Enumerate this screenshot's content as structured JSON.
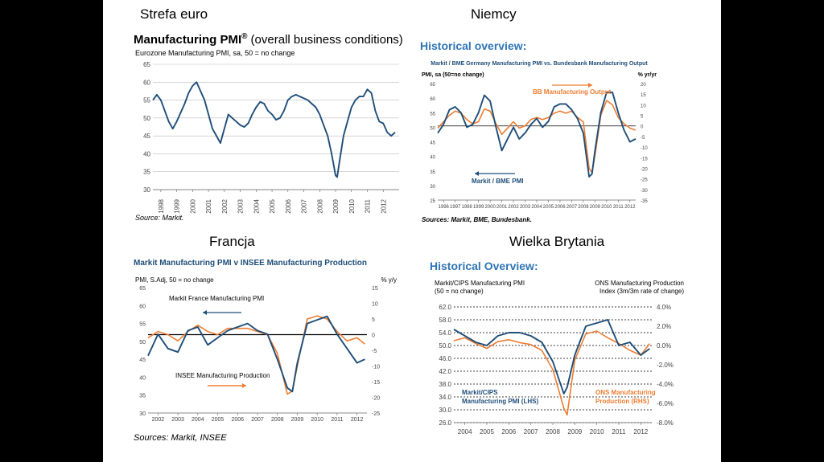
{
  "regions": {
    "eurozone": "Strefa euro",
    "germany": "Niemcy",
    "france": "Francja",
    "uk": "Wielka Brytania"
  },
  "chart_data": [
    {
      "id": "eurozone",
      "type": "line",
      "title": "Manufacturing PMI",
      "title_sup": "®",
      "title_suffix": "(overall business conditions)",
      "subtitle": "Eurozone Manufacturing PMI, sa, 50 = no change",
      "source": "Source: Markit.",
      "ylim": [
        30,
        65
      ],
      "y_ticks": [
        "30",
        "35",
        "40",
        "45",
        "50",
        "55",
        "60",
        "65"
      ],
      "x_ticks": [
        "1998",
        "1999",
        "2000",
        "2001",
        "2002",
        "2003",
        "2004",
        "2005",
        "2006",
        "2007",
        "2008",
        "2009",
        "2010",
        "2011",
        "2012"
      ],
      "x_range": [
        1997.5,
        2013.0
      ],
      "grid": true,
      "colors": {
        "line": "#1f4e79",
        "grid": "#bdbdbd"
      },
      "series": [
        {
          "x": [
            1997.5,
            1997.75,
            1998.0,
            1998.25,
            1998.5,
            1998.75,
            1999.0,
            1999.25,
            1999.5,
            1999.75,
            2000.0,
            2000.25,
            2000.5,
            2000.75,
            2001.0,
            2001.25,
            2001.5,
            2001.75,
            2002.0,
            2002.25,
            2002.5,
            2002.75,
            2003.0,
            2003.25,
            2003.5,
            2003.75,
            2004.0,
            2004.25,
            2004.5,
            2004.75,
            2005.0,
            2005.25,
            2005.5,
            2005.75,
            2006.0,
            2006.25,
            2006.5,
            2006.75,
            2007.0,
            2007.25,
            2007.5,
            2007.75,
            2008.0,
            2008.25,
            2008.5,
            2008.75,
            2009.0,
            2009.1,
            2009.25,
            2009.5,
            2009.75,
            2010.0,
            2010.25,
            2010.5,
            2010.75,
            2011.0,
            2011.25,
            2011.5,
            2011.75,
            2012.0,
            2012.25,
            2012.5,
            2012.75
          ],
          "y": [
            55,
            56.5,
            55,
            52,
            49,
            47,
            49,
            51.5,
            54,
            57,
            59,
            60,
            57.5,
            55,
            51,
            47,
            45,
            43,
            47,
            51,
            50,
            49,
            48,
            47.5,
            48.5,
            51,
            53,
            54.5,
            54,
            52,
            51,
            49.5,
            50,
            52,
            55,
            56,
            56.5,
            56,
            55.5,
            55,
            54,
            53,
            51,
            48,
            45,
            40,
            34,
            33.5,
            38,
            45,
            49,
            53,
            55,
            56,
            56,
            58,
            57,
            52,
            49,
            48.5,
            46,
            45,
            46
          ]
        }
      ]
    },
    {
      "id": "germany",
      "type": "line",
      "title": "Historical overview:",
      "subtitle": "Markit / BME Germany Manufacturing PMI vs. Bundesbank Manufacturing Output",
      "ylabel_left": "PMI, sa (50=no change)",
      "ylabel_right": "% yr/yr",
      "source": "Sources: Markit, BME, Bundesbank.",
      "ylim": [
        25,
        65
      ],
      "y2lim": [
        -35,
        20
      ],
      "y_ticks": [
        "25",
        "30",
        "35",
        "40",
        "45",
        "50",
        "55",
        "60",
        "65"
      ],
      "y2_ticks": [
        "-35",
        "-30",
        "-25",
        "-20",
        "-15",
        "-10",
        "-5",
        "0",
        "5",
        "10",
        "15",
        "20"
      ],
      "x_ticks": [
        "1996",
        "1997",
        "1998",
        "1999",
        "2000",
        "2001",
        "2002",
        "2003",
        "2004",
        "2005",
        "2006",
        "2007",
        "2008",
        "2009",
        "2010",
        "2011",
        "2012"
      ],
      "x_range": [
        1996.0,
        2013.0
      ],
      "grid": false,
      "colors": {
        "pmi": "#1f4e79",
        "output": "#ed7d31",
        "arrow_blue": "#1f4e79",
        "arrow_orange": "#ed7d31"
      },
      "series": [
        {
          "name": "BB Manufacturing Output",
          "axis": "right",
          "x": [
            1996.0,
            1996.5,
            1997.0,
            1997.5,
            1998.0,
            1998.5,
            1999.0,
            1999.5,
            2000.0,
            2000.5,
            2001.0,
            2001.5,
            2002.0,
            2002.5,
            2003.0,
            2003.5,
            2004.0,
            2004.5,
            2005.0,
            2005.5,
            2006.0,
            2006.5,
            2007.0,
            2007.5,
            2008.0,
            2008.5,
            2009.0,
            2009.25,
            2009.5,
            2010.0,
            2010.5,
            2011.0,
            2011.5,
            2012.0,
            2012.5,
            2013.0
          ],
          "y": [
            -1,
            2,
            5,
            7,
            6,
            3,
            1,
            2,
            8,
            7,
            1,
            -4,
            -1,
            2,
            -1,
            0,
            3,
            4,
            3,
            4,
            6,
            7,
            6,
            7,
            4,
            2,
            -20,
            -22,
            -14,
            5,
            12,
            10,
            4,
            1,
            -1,
            -2
          ]
        },
        {
          "name": "Markit / BME PMI",
          "axis": "left",
          "x": [
            1996.0,
            1996.5,
            1997.0,
            1997.5,
            1998.0,
            1998.5,
            1999.0,
            1999.5,
            2000.0,
            2000.5,
            2001.0,
            2001.5,
            2002.0,
            2002.5,
            2003.0,
            2003.5,
            2004.0,
            2004.5,
            2005.0,
            2005.5,
            2006.0,
            2006.5,
            2007.0,
            2007.5,
            2008.0,
            2008.5,
            2009.0,
            2009.25,
            2009.5,
            2010.0,
            2010.5,
            2011.0,
            2011.5,
            2012.0,
            2012.5,
            2013.0
          ],
          "y": [
            48,
            51,
            56,
            57,
            55,
            50,
            51,
            55,
            61,
            59,
            50,
            42,
            46,
            50,
            46,
            48,
            51,
            53,
            50,
            52,
            57,
            58,
            58,
            56,
            53,
            48,
            33,
            34,
            42,
            55,
            62,
            62,
            55,
            49,
            45,
            46
          ]
        }
      ]
    },
    {
      "id": "france",
      "type": "line",
      "title": "Markit Manufacturing PMI v INSEE Manufacturing Production",
      "ylabel_left": "PMI, S.Adj, 50 = no change",
      "ylabel_right": "% y/y",
      "annotation_pmi": "Markit France Manufacturing PMI",
      "annotation_output": "INSEE Manufacturing Production",
      "source": "Sources: Markit, INSEE",
      "ylim": [
        30,
        65
      ],
      "y2lim": [
        -25,
        15
      ],
      "y_ticks": [
        "30",
        "35",
        "40",
        "45",
        "50",
        "55",
        "60",
        "65"
      ],
      "y2_ticks": [
        "-25",
        "-20",
        "-15",
        "-10",
        "-5",
        "0",
        "5",
        "10",
        "15"
      ],
      "x_ticks": [
        "2002",
        "2003",
        "2004",
        "2005",
        "2006",
        "2007",
        "2008",
        "2009",
        "2010",
        "2011",
        "2012"
      ],
      "x_range": [
        2002.0,
        2013.0
      ],
      "grid": false,
      "colors": {
        "pmi": "#1f4e79",
        "output": "#ed7d31",
        "zero_line": "#000000"
      },
      "series": [
        {
          "name": "INSEE Manufacturing Production",
          "axis": "right",
          "x": [
            2002.0,
            2002.5,
            2003.0,
            2003.5,
            2004.0,
            2004.5,
            2005.0,
            2005.5,
            2006.0,
            2006.5,
            2007.0,
            2007.5,
            2008.0,
            2008.5,
            2009.0,
            2009.25,
            2009.5,
            2010.0,
            2010.5,
            2011.0,
            2011.5,
            2012.0,
            2012.5,
            2012.9
          ],
          "y": [
            -1,
            1,
            0,
            -2,
            1,
            3,
            1,
            0,
            2,
            2,
            2,
            1,
            0,
            -6,
            -19,
            -18,
            -10,
            5,
            6,
            5,
            1,
            -2,
            -1,
            -3
          ]
        },
        {
          "name": "Markit France Manufacturing PMI",
          "axis": "left",
          "x": [
            2002.0,
            2002.5,
            2003.0,
            2003.5,
            2004.0,
            2004.5,
            2005.0,
            2005.5,
            2006.0,
            2006.5,
            2007.0,
            2007.5,
            2008.0,
            2008.5,
            2009.0,
            2009.25,
            2009.5,
            2010.0,
            2010.5,
            2011.0,
            2011.5,
            2012.0,
            2012.5,
            2012.9
          ],
          "y": [
            46,
            52,
            48,
            47,
            53,
            54,
            49,
            51,
            53,
            54,
            55,
            53,
            52,
            45,
            37,
            36,
            44,
            55,
            56,
            57,
            52,
            48,
            44,
            45
          ]
        }
      ]
    },
    {
      "id": "uk",
      "type": "line",
      "title": "Historical Overview:",
      "ylabel_left": [
        "Markit/CIPS Manufacturing PMI",
        "(50 = no change)"
      ],
      "ylabel_right": [
        "ONS Manufacturing Production",
        "Index (3m/3m rate of change)"
      ],
      "annotation_pmi": [
        "Markit/CIPS",
        "Manufacturing PMI (LHS)"
      ],
      "annotation_output": [
        "ONS Manufacturing",
        "Production (RHS)"
      ],
      "ylim": [
        26,
        62
      ],
      "y2lim": [
        -8,
        4
      ],
      "y_ticks": [
        "26.0",
        "30.0",
        "34.0",
        "38.0",
        "42.0",
        "46.0",
        "50.0",
        "54.0",
        "58.0",
        "62.0"
      ],
      "y2_ticks": [
        "-8.0%",
        "-6.0%",
        "-4.0%",
        "-2.0%",
        "0.0%",
        "2.0%",
        "4.0%"
      ],
      "x_ticks": [
        "2004",
        "2005",
        "2006",
        "2007",
        "2008",
        "2009",
        "2010",
        "2011",
        "2012"
      ],
      "x_range": [
        2004.0,
        2013.0
      ],
      "grid": true,
      "colors": {
        "pmi": "#1f4e79",
        "output": "#ed7d31",
        "grid": "#000000"
      },
      "series": [
        {
          "name": "ONS Manufacturing Production (RHS)",
          "axis": "right",
          "x": [
            2004.0,
            2004.5,
            2005.0,
            2005.5,
            2006.0,
            2006.5,
            2007.0,
            2007.5,
            2008.0,
            2008.5,
            2009.0,
            2009.15,
            2009.5,
            2010.0,
            2010.5,
            2011.0,
            2011.5,
            2012.0,
            2012.5,
            2012.9
          ],
          "y": [
            0.5,
            0.8,
            0.2,
            -0.3,
            0.4,
            0.6,
            0.3,
            0.1,
            -0.5,
            -2.5,
            -6.5,
            -7.2,
            -1.5,
            1.2,
            1.5,
            0.8,
            0.2,
            -0.5,
            -1.0,
            0.2
          ]
        },
        {
          "name": "Markit/CIPS Manufacturing PMI (LHS)",
          "axis": "left",
          "x": [
            2004.0,
            2004.5,
            2005.0,
            2005.5,
            2006.0,
            2006.5,
            2007.0,
            2007.5,
            2008.0,
            2008.5,
            2009.0,
            2009.15,
            2009.5,
            2010.0,
            2010.5,
            2011.0,
            2011.5,
            2012.0,
            2012.5,
            2012.9
          ],
          "y": [
            55,
            53,
            51,
            50,
            53,
            54,
            54,
            53,
            51,
            45,
            35,
            37,
            47,
            56,
            57,
            58,
            50,
            51,
            47,
            49
          ]
        }
      ]
    }
  ]
}
